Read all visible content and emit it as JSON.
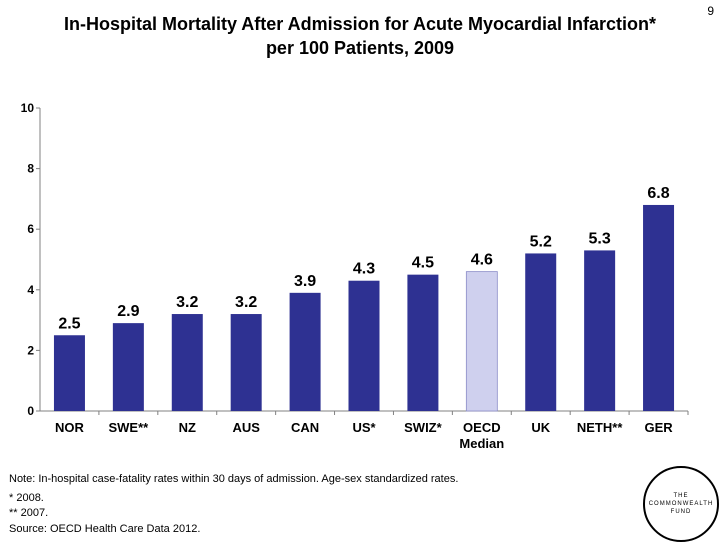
{
  "page_number": "9",
  "title_line1": "In-Hospital Mortality After Admission for Acute Myocardial Infarction*",
  "title_line2": "per 100 Patients, 2009",
  "chart_data": {
    "type": "bar",
    "title": "In-Hospital Mortality After Admission for Acute Myocardial Infarction* per 100 Patients, 2009",
    "categories": [
      "NOR",
      "SWE**",
      "NZ",
      "AUS",
      "CAN",
      "US*",
      "SWIZ*",
      "OECD Median",
      "UK",
      "NETH**",
      "GER"
    ],
    "category_lines": [
      [
        "NOR"
      ],
      [
        "SWE**"
      ],
      [
        "NZ"
      ],
      [
        "AUS"
      ],
      [
        "CAN"
      ],
      [
        "US*"
      ],
      [
        "SWIZ*"
      ],
      [
        "OECD",
        "Median"
      ],
      [
        "UK"
      ],
      [
        "NETH**"
      ],
      [
        "GER"
      ]
    ],
    "values": [
      2.5,
      2.9,
      3.2,
      3.2,
      3.9,
      4.3,
      4.5,
      4.6,
      5.2,
      5.3,
      6.8
    ],
    "value_labels": [
      "2.5",
      "2.9",
      "3.2",
      "3.2",
      "3.9",
      "4.3",
      "4.5",
      "4.6",
      "5.2",
      "5.3",
      "6.8"
    ],
    "highlight_index": 7,
    "y_ticks": [
      "0",
      "2",
      "4",
      "6",
      "8",
      "10"
    ],
    "ylim": [
      0,
      10
    ],
    "xlabel": "",
    "ylabel": "",
    "grid": false,
    "colors": {
      "bar": "#2e3192",
      "highlight": "#cfd0ee",
      "axis": "#808080"
    }
  },
  "notes": {
    "line1": "Note: In-hospital case-fatality rates within 30 days of admission. Age-sex standardized rates.",
    "line2": "* 2008.",
    "line3": "** 2007.",
    "line4": "Source: OECD Health Care Data 2012."
  },
  "logo": {
    "line1": "THE",
    "line2": "COMMONWEALTH",
    "line3": "FUND"
  }
}
